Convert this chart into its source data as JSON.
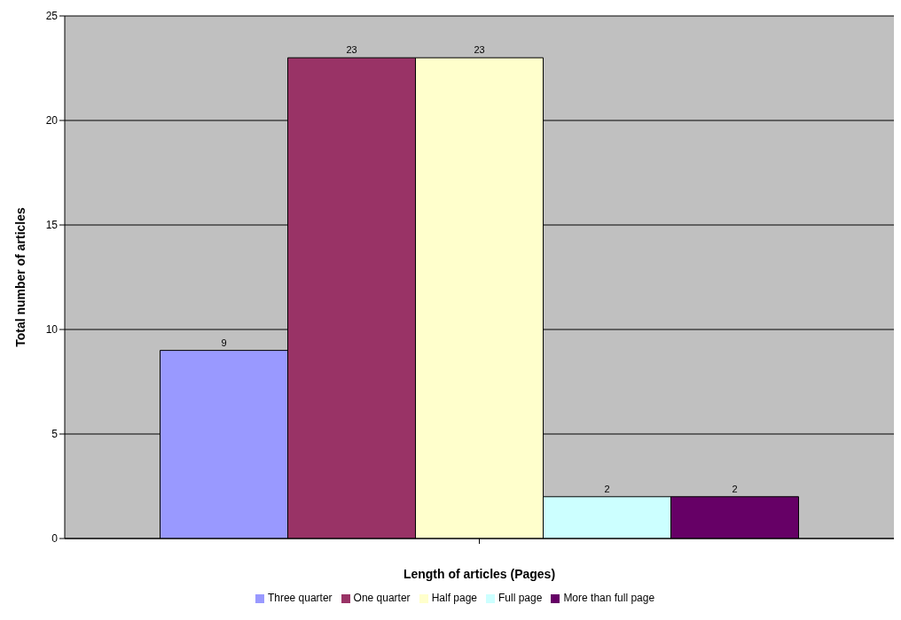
{
  "chart_data": {
    "type": "bar",
    "xlabel": "Length of articles (Pages)",
    "ylabel": "Total number of articles",
    "categories": [
      null
    ],
    "series": [
      {
        "name": "Three quarter",
        "color": "#9999ff",
        "values": [
          9
        ]
      },
      {
        "name": "One quarter",
        "color": "#993366",
        "values": [
          23
        ]
      },
      {
        "name": "Half page",
        "color": "#ffffcc",
        "values": [
          23
        ]
      },
      {
        "name": "Full page",
        "color": "#ccffff",
        "values": [
          2
        ]
      },
      {
        "name": "More than full page",
        "color": "#660066",
        "values": [
          2
        ]
      }
    ],
    "ylim": [
      0,
      25
    ],
    "yticks": [
      0,
      5,
      10,
      15,
      20,
      25
    ],
    "grid": "y",
    "legend": "bottom",
    "data_labels": true
  }
}
